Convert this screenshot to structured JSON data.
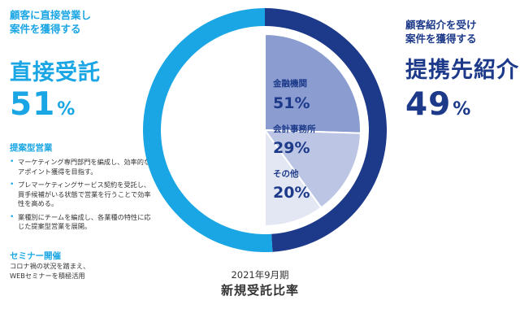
{
  "left": {
    "subtitle_line1": "顧客に直接営業し",
    "subtitle_line2": "案件を獲得する",
    "title": "直接受託",
    "percent": "51",
    "unit": "%",
    "sales_heading": "提案型営業",
    "bullets": [
      "マーケティング専門部門を編成し、効率的なアポイント獲得を目指す。",
      "プレマーケティングサービス契約を受託し、買手候補がいる状態で営業を行うことで効率性を高める。",
      "業種別にチームを編成し、各業種の特性に応じた提案型営業を展開。"
    ],
    "seminar_heading": "セミナー開催",
    "seminar_line1": "コロナ禍の状況を踏まえ、",
    "seminar_line2": "WEBセミナーを積極活用"
  },
  "right": {
    "subtitle_line1": "顧客紹介を受け",
    "subtitle_line2": "案件を獲得する",
    "title": "提携先紹介",
    "percent": "49",
    "unit": "%"
  },
  "caption": {
    "period": "2021年9月期",
    "title": "新規受託比率"
  },
  "colors": {
    "direct": "#1aa6e4",
    "partner": "#1d3a8a",
    "financial": "#8a9cd0",
    "accounting": "#bcc6e4",
    "other": "#e3e7f3"
  },
  "chart_data": {
    "type": "pie",
    "title": "新規受託比率",
    "subtitle": "2021年9月期",
    "outer_ring": [
      {
        "name": "直接受託",
        "value": 51
      },
      {
        "name": "提携先紹介",
        "value": 49
      }
    ],
    "inner_breakdown": [
      {
        "name": "金融機関",
        "value": 51,
        "label": "51%"
      },
      {
        "name": "会計事務所",
        "value": 29,
        "label": "29%"
      },
      {
        "name": "その他",
        "value": 20,
        "label": "20%"
      }
    ]
  }
}
